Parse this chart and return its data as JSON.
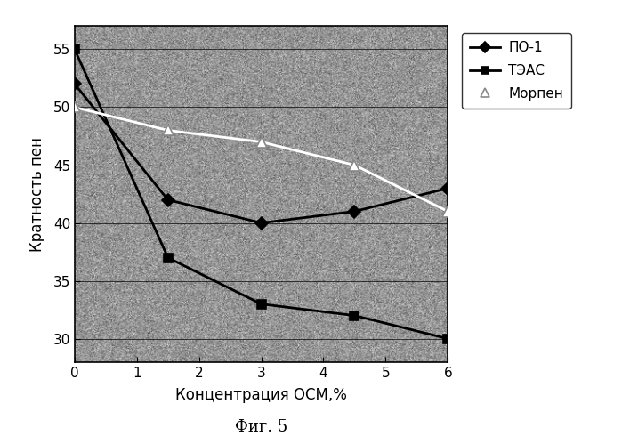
{
  "title": "",
  "xlabel": "Концентрация ОСМ,%",
  "ylabel": "Кратность пен",
  "caption": "Фиг. 5",
  "xlim": [
    0,
    6
  ],
  "ylim": [
    28,
    57
  ],
  "yticks": [
    30,
    35,
    40,
    45,
    50,
    55
  ],
  "xticks": [
    0,
    1,
    2,
    3,
    4,
    5,
    6
  ],
  "series": [
    {
      "label": "ПО-1",
      "x": [
        0,
        1.5,
        3,
        4.5,
        6
      ],
      "y": [
        52,
        42,
        40,
        41,
        43
      ],
      "color": "#000000",
      "marker": "D",
      "markersize": 7,
      "linewidth": 2.0,
      "linestyle": "-",
      "markerfacecolor": "#000000",
      "markeredgecolor": "#000000"
    },
    {
      "label": "ТЭАС",
      "x": [
        0,
        1.5,
        3,
        4.5,
        6
      ],
      "y": [
        55,
        37,
        33,
        32,
        30
      ],
      "color": "#000000",
      "marker": "s",
      "markersize": 7,
      "linewidth": 2.0,
      "linestyle": "-",
      "markerfacecolor": "#000000",
      "markeredgecolor": "#000000"
    },
    {
      "label": "Морпен",
      "x": [
        0,
        1.5,
        3,
        4.5,
        6
      ],
      "y": [
        50,
        48,
        47,
        45,
        41
      ],
      "color": "#ffffff",
      "marker": "^",
      "markersize": 8,
      "linewidth": 2.0,
      "linestyle": "-",
      "markerfacecolor": "#ffffff",
      "markeredgecolor": "#888888"
    }
  ],
  "plot_bg_color": "#b0b0b0",
  "fig_bg": "#ffffff",
  "noise_seed": 42,
  "noise_alpha": 0.55
}
